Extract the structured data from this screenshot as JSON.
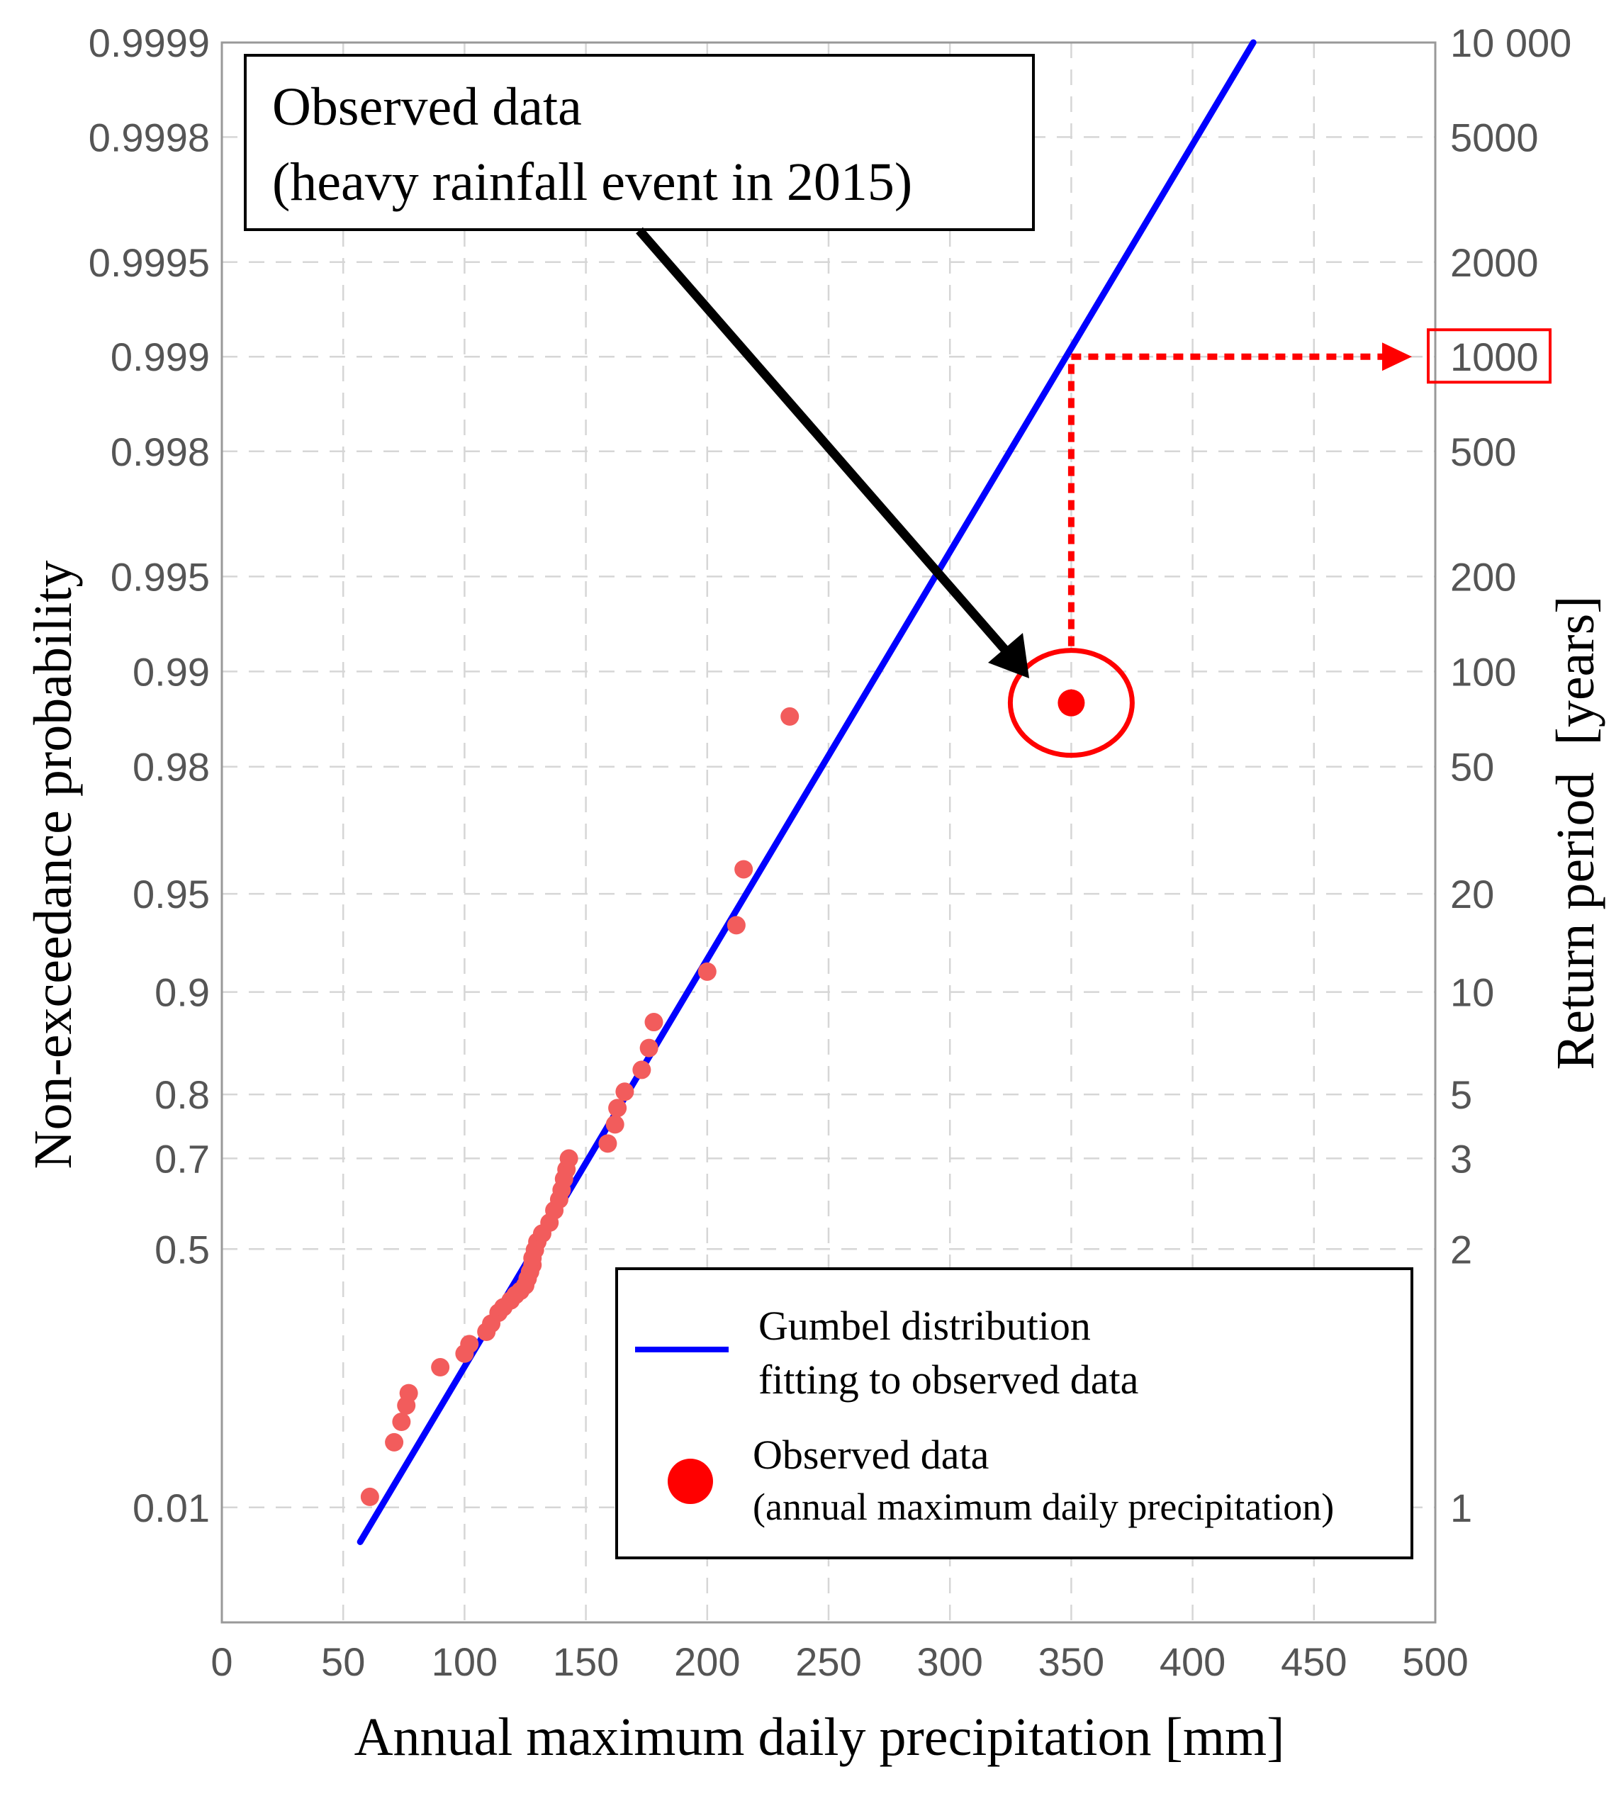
{
  "chart_data": {
    "type": "scatter",
    "title": "",
    "xlabel": "Annual maximum daily precipitation [mm]",
    "ylabel_left": "Non-exceedance probability",
    "ylabel_right": "Return period  [years]",
    "xlim": [
      0,
      500
    ],
    "x_ticks": [
      0,
      50,
      100,
      150,
      200,
      250,
      300,
      350,
      400,
      450,
      500
    ],
    "x_tick_labels": [
      "0",
      "50",
      "100",
      "150",
      "200",
      "250",
      "300",
      "350",
      "400",
      "450",
      "500"
    ],
    "y_scale": "gumbel (reduced variate -ln(-ln p))",
    "y_ticks": [
      0.01,
      0.5,
      0.7,
      0.8,
      0.9,
      0.95,
      0.98,
      0.99,
      0.995,
      0.998,
      0.999,
      0.9995,
      0.9998,
      0.9999
    ],
    "y_tick_labels": [
      "0.01",
      "0.5",
      "0.7",
      "0.8",
      "0.9",
      "0.95",
      "0.98",
      "0.99",
      "0.995",
      "0.998",
      "0.999",
      "0.9995",
      "0.9998",
      "0.9999"
    ],
    "return_period_labels": [
      "1",
      "2",
      "3",
      "5",
      "10",
      "20",
      "50",
      "100",
      "200",
      "500",
      "1000",
      "2000",
      "5000",
      "10 000"
    ],
    "grid": true,
    "legend_position": "bottom-right",
    "series": [
      {
        "name": "Gumbel distribution fitting to observed data",
        "type": "line",
        "color": "#0000ff",
        "x": [
          57,
          425
        ],
        "y": [
          -1.78,
          9.21
        ]
      },
      {
        "name": "Observed data (annual maximum daily precipitation)",
        "type": "scatter",
        "color": "#f25c5c",
        "points": [
          [
            61,
            -1.45
          ],
          [
            71,
            -1.05
          ],
          [
            74,
            -0.9
          ],
          [
            76,
            -0.78
          ],
          [
            77,
            -0.69
          ],
          [
            90,
            -0.5
          ],
          [
            100,
            -0.4
          ],
          [
            102,
            -0.33
          ],
          [
            109,
            -0.24
          ],
          [
            111,
            -0.18
          ],
          [
            114,
            -0.1
          ],
          [
            116,
            -0.06
          ],
          [
            119,
            -0.01
          ],
          [
            121,
            0.03
          ],
          [
            123,
            0.06
          ],
          [
            125,
            0.1
          ],
          [
            126,
            0.15
          ],
          [
            127,
            0.2
          ],
          [
            128,
            0.25
          ],
          [
            128,
            0.3
          ],
          [
            129,
            0.36
          ],
          [
            130,
            0.42
          ],
          [
            132,
            0.48
          ],
          [
            135,
            0.56
          ],
          [
            137,
            0.65
          ],
          [
            139,
            0.73
          ],
          [
            140,
            0.8
          ],
          [
            141,
            0.88
          ],
          [
            142,
            0.95
          ],
          [
            143,
            1.03
          ],
          [
            159,
            1.14
          ],
          [
            162,
            1.28
          ],
          [
            163,
            1.4
          ],
          [
            166,
            1.52
          ],
          [
            173,
            1.68
          ],
          [
            176,
            1.84
          ],
          [
            178,
            2.03
          ],
          [
            200,
            2.4
          ],
          [
            212,
            2.74
          ],
          [
            215,
            3.15
          ],
          [
            234,
            4.27
          ]
        ]
      },
      {
        "name": "Observed data (heavy rainfall event in 2015)",
        "type": "scatter",
        "color": "#ff0000",
        "points": [
          [
            350,
            4.37
          ]
        ]
      }
    ],
    "annotations": [
      {
        "id": "event-2015",
        "line1": "Observed data",
        "line2": "(heavy rainfall event in 2015)",
        "target": [
          350,
          4.37
        ]
      },
      {
        "id": "return-period-readout",
        "x": 350,
        "probability": 0.999,
        "return_period": "1000"
      }
    ],
    "legend": {
      "line_label_1": "Gumbel distribution",
      "line_label_2": "fitting to observed data",
      "dot_label_1": "Observed data",
      "dot_label_2": "(annual maximum daily precipitation)"
    },
    "colors": {
      "fit_line": "#0000ff",
      "points": "#f25c5c",
      "highlight": "#ff0000",
      "grid": "#d6d6d6"
    }
  }
}
